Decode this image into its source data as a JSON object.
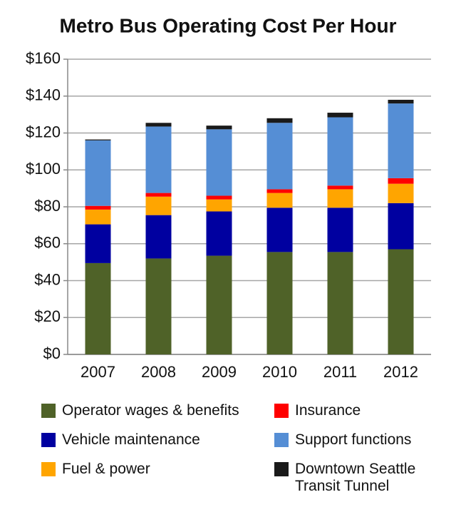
{
  "chart_data": {
    "type": "stacked_bar",
    "title": "Metro Bus Operating Cost Per Hour",
    "categories": [
      "2007",
      "2008",
      "2009",
      "2010",
      "2011",
      "2012"
    ],
    "series": [
      {
        "name": "Operator wages & benefits",
        "color": "#4f6228",
        "values": [
          49.5,
          52,
          53.5,
          55.5,
          55.5,
          57
        ]
      },
      {
        "name": "Vehicle maintenance",
        "color": "#0000a0",
        "values": [
          21,
          23.5,
          24,
          24,
          24,
          25
        ]
      },
      {
        "name": "Fuel & power",
        "color": "#ffa500",
        "values": [
          8,
          10,
          6.5,
          8,
          10,
          10.5
        ]
      },
      {
        "name": "Insurance",
        "color": "#ff0000",
        "values": [
          2,
          2,
          2,
          2,
          2,
          3
        ]
      },
      {
        "name": "Support functions",
        "color": "#558ed5",
        "values": [
          35.5,
          36,
          36,
          36,
          37,
          40.5
        ]
      },
      {
        "name": "Downtown Seattle Transit Tunnel",
        "color": "#1a1a1a",
        "values": [
          0.5,
          2,
          2,
          2.5,
          2.5,
          2
        ]
      }
    ],
    "ylim": [
      0,
      160
    ],
    "yticks": [
      {
        "value": 0,
        "label": "$0"
      },
      {
        "value": 20,
        "label": "$20"
      },
      {
        "value": 40,
        "label": "$40"
      },
      {
        "value": 60,
        "label": "$60"
      },
      {
        "value": 80,
        "label": "$80"
      },
      {
        "value": 100,
        "label": "$100"
      },
      {
        "value": 120,
        "label": "$120"
      },
      {
        "value": 140,
        "label": "$140"
      },
      {
        "value": 160,
        "label": "$160"
      }
    ],
    "grid": true
  }
}
